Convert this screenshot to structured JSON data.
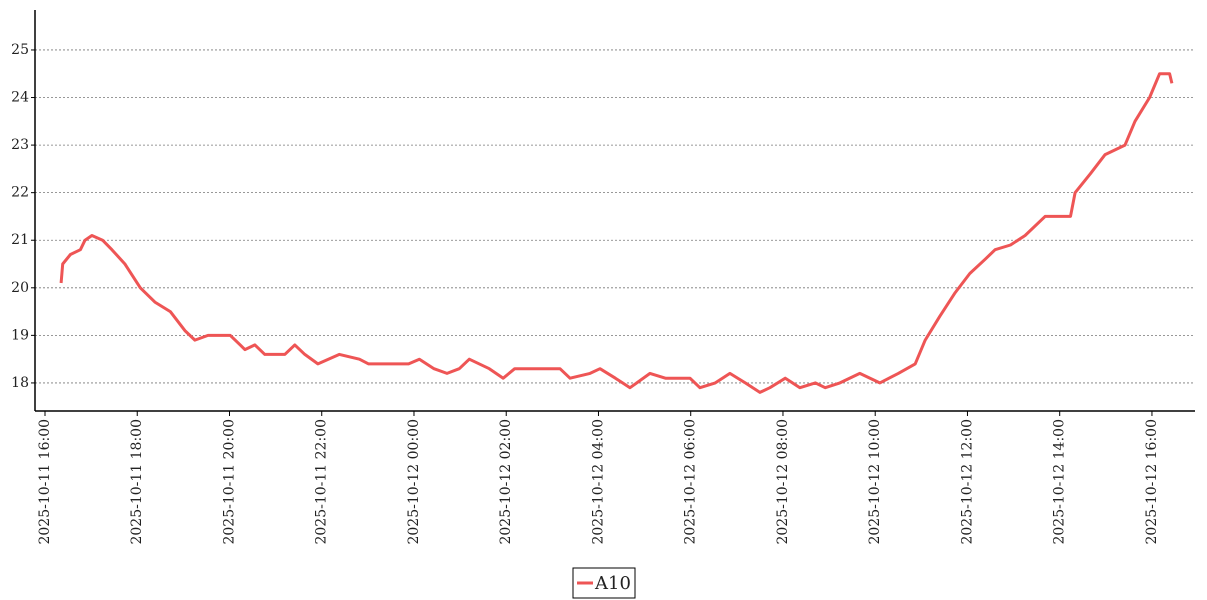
{
  "chart_data": {
    "type": "line",
    "x": [
      "2025-10-11 16:21",
      "2025-10-11 16:23",
      "2025-10-11 16:33",
      "2025-10-11 16:46",
      "2025-10-11 16:52",
      "2025-10-11 17:01",
      "2025-10-11 17:15",
      "2025-10-11 17:27",
      "2025-10-11 17:44",
      "2025-10-11 18:04",
      "2025-10-11 18:23",
      "2025-10-11 18:43",
      "2025-10-11 19:02",
      "2025-10-11 19:15",
      "2025-10-11 19:32",
      "2025-10-11 20:01",
      "2025-10-11 20:14",
      "2025-10-11 20:20",
      "2025-10-11 20:33",
      "2025-10-11 20:46",
      "2025-10-11 21:12",
      "2025-10-11 21:25",
      "2025-10-11 21:38",
      "2025-10-11 21:55",
      "2025-10-11 22:23",
      "2025-10-11 22:49",
      "2025-10-11 23:01",
      "2025-10-11 23:53",
      "2025-10-12 00:07",
      "2025-10-12 00:26",
      "2025-10-12 00:43",
      "2025-10-12 00:59",
      "2025-10-12 01:12",
      "2025-10-12 01:38",
      "2025-10-12 01:56",
      "2025-10-12 02:11",
      "2025-10-12 03:10",
      "2025-10-12 03:23",
      "2025-10-12 03:49",
      "2025-10-12 04:02",
      "2025-10-12 04:22",
      "2025-10-12 04:41",
      "2025-10-12 05:07",
      "2025-10-12 05:27",
      "2025-10-12 05:59",
      "2025-10-12 06:12",
      "2025-10-12 06:32",
      "2025-10-12 06:51",
      "2025-10-12 07:11",
      "2025-10-12 07:30",
      "2025-10-12 07:43",
      "2025-10-12 08:03",
      "2025-10-12 08:22",
      "2025-10-12 08:42",
      "2025-10-12 08:55",
      "2025-10-12 09:14",
      "2025-10-12 09:40",
      "2025-10-12 10:06",
      "2025-10-12 10:30",
      "2025-10-12 10:52",
      "2025-10-12 11:05",
      "2025-10-12 11:24",
      "2025-10-12 11:44",
      "2025-10-12 12:03",
      "2025-10-12 12:23",
      "2025-10-12 12:36",
      "2025-10-12 12:56",
      "2025-10-12 13:15",
      "2025-10-12 13:41",
      "2025-10-12 14:14",
      "2025-10-12 14:20",
      "2025-10-12 14:40",
      "2025-10-12 14:59",
      "2025-10-12 15:25",
      "2025-10-12 15:38",
      "2025-10-12 15:57",
      "2025-10-12 16:10",
      "2025-10-12 16:23",
      "2025-10-12 16:26"
    ],
    "series": [
      {
        "name": "A10",
        "color": "#ee5555",
        "values": [
          20.1,
          20.5,
          20.7,
          20.8,
          21.0,
          21.1,
          21.0,
          20.8,
          20.5,
          20.0,
          19.7,
          19.5,
          19.1,
          18.9,
          19.0,
          19.0,
          18.8,
          18.7,
          18.8,
          18.6,
          18.6,
          18.8,
          18.6,
          18.4,
          18.6,
          18.5,
          18.4,
          18.4,
          18.5,
          18.3,
          18.2,
          18.3,
          18.5,
          18.3,
          18.1,
          18.3,
          18.3,
          18.1,
          18.2,
          18.3,
          18.1,
          17.9,
          18.2,
          18.1,
          18.1,
          17.9,
          18.0,
          18.2,
          18.0,
          17.8,
          17.9,
          18.1,
          17.9,
          18.0,
          17.9,
          18.0,
          18.2,
          18.0,
          18.2,
          18.4,
          18.9,
          19.4,
          19.9,
          20.3,
          20.6,
          20.8,
          20.9,
          21.1,
          21.5,
          21.5,
          22.0,
          22.4,
          22.8,
          23.0,
          23.5,
          24.0,
          24.5,
          24.5,
          24.3
        ]
      }
    ],
    "xlim": [
      "2025-10-11 15:47",
      "2025-10-12 16:56"
    ],
    "xticks": [
      "2025-10-11 16:00",
      "2025-10-11 18:00",
      "2025-10-11 20:00",
      "2025-10-11 22:00",
      "2025-10-12 00:00",
      "2025-10-12 02:00",
      "2025-10-12 04:00",
      "2025-10-12 06:00",
      "2025-10-12 08:00",
      "2025-10-12 10:00",
      "2025-10-12 12:00",
      "2025-10-12 14:00",
      "2025-10-12 16:00"
    ],
    "ylim": [
      17.41,
      25.84
    ],
    "yticks": [
      18,
      19,
      20,
      21,
      22,
      23,
      24,
      25
    ],
    "grid": true
  }
}
